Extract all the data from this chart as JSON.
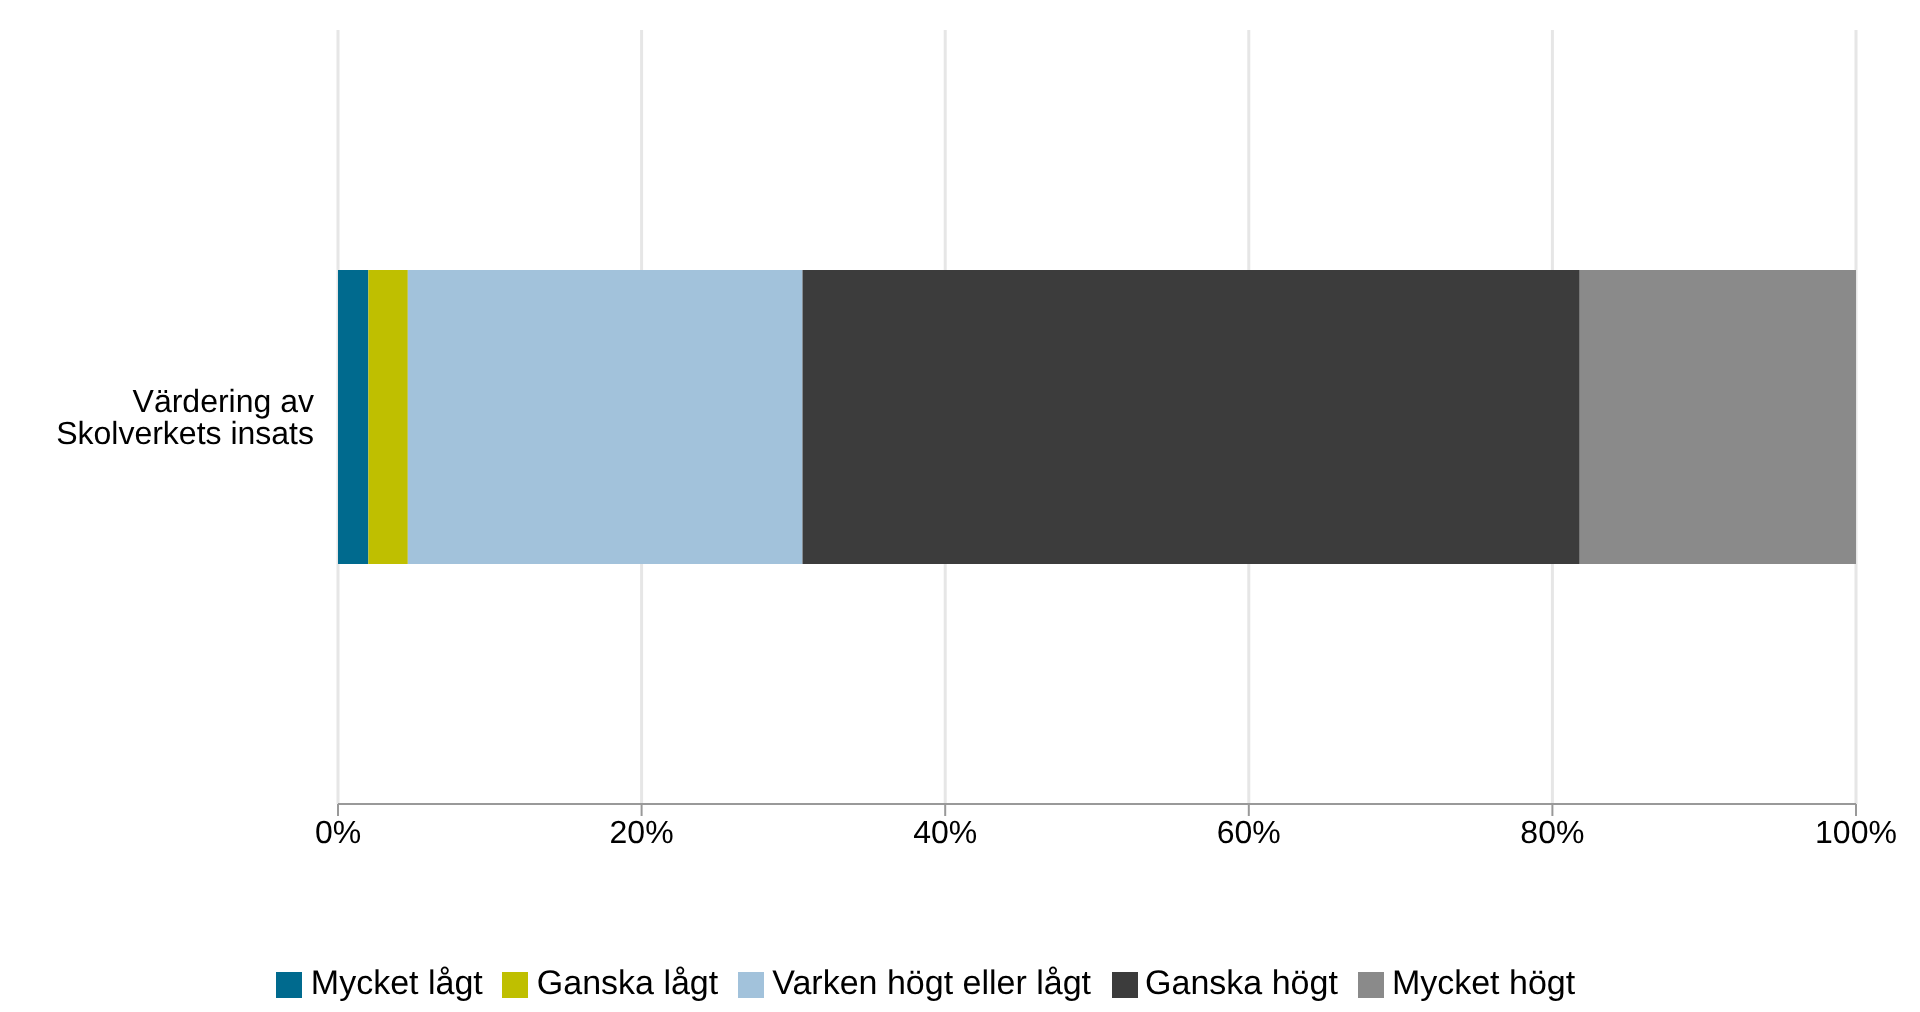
{
  "chart_data": {
    "type": "bar",
    "orientation": "horizontal",
    "stacked": true,
    "categories": [
      "Värdering av Skolverkets insats"
    ],
    "series": [
      {
        "name": "Mycket lågt",
        "color": "#006a8e",
        "values": [
          2.0
        ]
      },
      {
        "name": "Ganska lågt",
        "color": "#bfbf00",
        "values": [
          2.6
        ]
      },
      {
        "name": "Varken högt eller lågt",
        "color": "#a2c2db",
        "values": [
          26.0
        ]
      },
      {
        "name": "Ganska högt",
        "color": "#3c3c3c",
        "values": [
          51.2
        ]
      },
      {
        "name": "Mycket högt",
        "color": "#8a8a8a",
        "values": [
          18.2
        ]
      }
    ],
    "xlim": [
      0,
      100
    ],
    "xticks": [
      {
        "value": 0,
        "label": "0%"
      },
      {
        "value": 20,
        "label": "20%"
      },
      {
        "value": 40,
        "label": "40%"
      },
      {
        "value": 60,
        "label": "60%"
      },
      {
        "value": 80,
        "label": "80%"
      },
      {
        "value": 100,
        "label": "100%"
      }
    ],
    "grid": "x",
    "legend": "bottom"
  }
}
